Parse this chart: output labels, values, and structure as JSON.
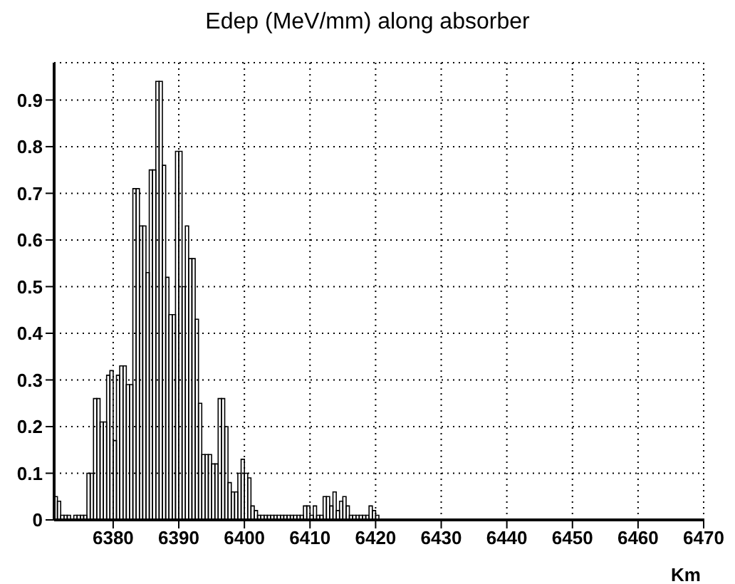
{
  "chart_data": {
    "type": "histogram",
    "title": "Edep (MeV/mm) along absorber",
    "xlabel": "Km",
    "bins": [
      6371,
      6371.5,
      6372,
      6372.5,
      6373,
      6373.5,
      6374,
      6374.5,
      6375,
      6375.5,
      6376,
      6376.5,
      6377,
      6377.5,
      6378,
      6378.5,
      6379,
      6379.5,
      6380,
      6380.5,
      6381,
      6381.5,
      6382,
      6382.5,
      6383,
      6383.5,
      6384,
      6384.5,
      6385,
      6385.5,
      6386,
      6386.5,
      6387,
      6387.5,
      6388,
      6388.5,
      6389,
      6389.5,
      6390,
      6390.5,
      6391,
      6391.5,
      6392,
      6392.5,
      6393,
      6393.5,
      6394,
      6394.5,
      6395,
      6395.5,
      6396,
      6396.5,
      6397,
      6397.5,
      6398,
      6398.5,
      6399,
      6399.5,
      6400,
      6400.5,
      6401,
      6401.5,
      6402,
      6402.5,
      6403,
      6403.5,
      6404,
      6404.5,
      6405,
      6405.5,
      6406,
      6406.5,
      6407,
      6407.5,
      6408,
      6408.5,
      6409,
      6409.5,
      6410,
      6410.5,
      6411,
      6411.5,
      6412,
      6412.5,
      6413,
      6413.5,
      6414,
      6414.5,
      6415,
      6415.5,
      6416,
      6416.5,
      6417,
      6417.5,
      6418,
      6418.5,
      6419,
      6419.5,
      6420,
      6420.5,
      6421
    ],
    "values": [
      0.05,
      0.04,
      0.01,
      0.01,
      0.01,
      0,
      0.01,
      0.01,
      0.01,
      0.01,
      0.1,
      0.1,
      0.26,
      0.26,
      0.21,
      0.21,
      0.31,
      0.32,
      0.17,
      0.31,
      0.33,
      0.33,
      0.29,
      0.29,
      0.71,
      0.71,
      0.63,
      0.63,
      0.53,
      0.75,
      0.75,
      0.94,
      0.94,
      0.76,
      0.52,
      0.44,
      0.44,
      0.79,
      0.79,
      0.5,
      0.63,
      0.56,
      0.56,
      0.43,
      0.25,
      0.14,
      0.14,
      0.14,
      0.12,
      0.12,
      0.26,
      0.26,
      0.2,
      0.08,
      0.06,
      0.06,
      0.1,
      0.13,
      0.1,
      0.09,
      0.03,
      0.02,
      0.01,
      0.01,
      0.01,
      0.01,
      0.01,
      0.01,
      0.01,
      0.01,
      0.01,
      0.01,
      0.01,
      0.01,
      0.01,
      0.01,
      0.03,
      0.03,
      0.01,
      0.03,
      0.01,
      0.01,
      0.05,
      0.05,
      0.03,
      0.06,
      0.02,
      0.04,
      0.05,
      0.03,
      0.01,
      0.01,
      0.01,
      0.01,
      0.01,
      0.01,
      0.03,
      0.02,
      0.01,
      0
    ],
    "color": "#000000",
    "xlim": [
      6371,
      6470
    ],
    "xticks": [
      6380,
      6390,
      6400,
      6410,
      6420,
      6430,
      6440,
      6450,
      6460,
      6470
    ],
    "ylim": [
      0,
      0.98
    ],
    "yticks": [
      0,
      0.1,
      0.2,
      0.3,
      0.4,
      0.5,
      0.6,
      0.7,
      0.8,
      0.9
    ],
    "grid": true
  }
}
